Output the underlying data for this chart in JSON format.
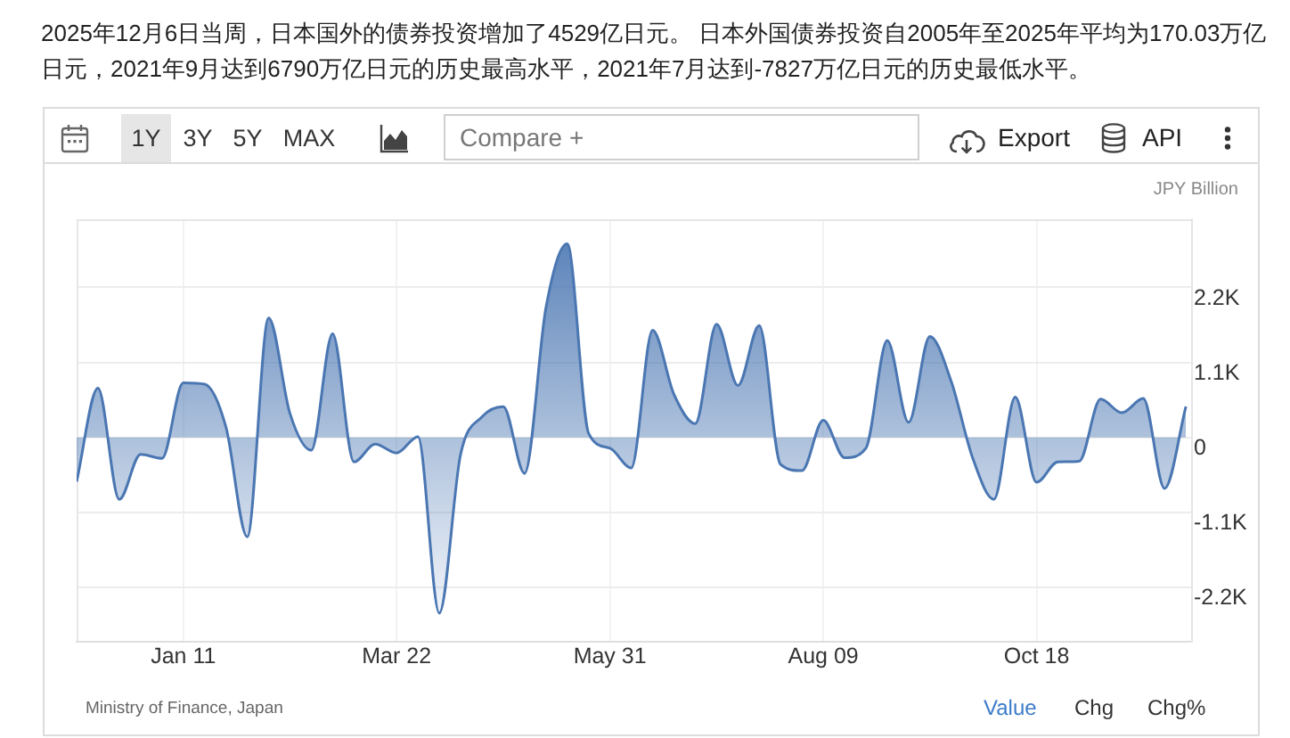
{
  "chart_data": {
    "type": "area",
    "title": "2025年12月6日当周，日本国外的债券投资增加了4529亿日元。 日本外国债券投资自2005年至2025年平均为170.03万亿日元，2021年9月达到6790万亿日元的历史最高水平，2021年7月达到-7827万亿日元的历史最低水平。",
    "ylabel": "JPY Billion",
    "x": [
      "2024-12-07",
      "2024-12-14",
      "2024-12-21",
      "2024-12-28",
      "2025-01-04",
      "2025-01-11",
      "2025-01-18",
      "2025-01-25",
      "2025-02-01",
      "2025-02-08",
      "2025-02-15",
      "2025-02-22",
      "2025-03-01",
      "2025-03-08",
      "2025-03-15",
      "2025-03-22",
      "2025-03-29",
      "2025-04-05",
      "2025-04-12",
      "2025-04-19",
      "2025-04-26",
      "2025-05-03",
      "2025-05-10",
      "2025-05-17",
      "2025-05-24",
      "2025-05-31",
      "2025-06-07",
      "2025-06-14",
      "2025-06-21",
      "2025-06-28",
      "2025-07-05",
      "2025-07-12",
      "2025-07-19",
      "2025-07-26",
      "2025-08-02",
      "2025-08-09",
      "2025-08-16",
      "2025-08-23",
      "2025-08-30",
      "2025-09-06",
      "2025-09-13",
      "2025-09-20",
      "2025-09-27",
      "2025-10-04",
      "2025-10-11",
      "2025-10-18",
      "2025-10-25",
      "2025-11-01",
      "2025-11-08",
      "2025-11-15",
      "2025-11-22",
      "2025-11-29",
      "2025-12-06"
    ],
    "series": [
      {
        "color": "#4a76b2",
        "values": [
          -650,
          720,
          -910,
          -250,
          -310,
          800,
          780,
          150,
          -1460,
          1750,
          350,
          -190,
          1520,
          -360,
          -100,
          -230,
          10,
          -2580,
          -250,
          300,
          450,
          -530,
          1900,
          2840,
          60,
          -160,
          -450,
          1570,
          630,
          200,
          1660,
          760,
          1640,
          -400,
          -490,
          250,
          -300,
          -160,
          1420,
          220,
          1480,
          820,
          -300,
          -910,
          590,
          -660,
          -360,
          -350,
          560,
          360,
          570,
          -750,
          450
        ]
      }
    ],
    "xlim": [
      "2024-12-07",
      "2025-12-08"
    ],
    "xticks": [
      {
        "value": "2025-01-11",
        "label": "Jan 11"
      },
      {
        "value": "2025-03-22",
        "label": "Mar 22"
      },
      {
        "value": "2025-05-31",
        "label": "May 31"
      },
      {
        "value": "2025-08-09",
        "label": "Aug 09"
      },
      {
        "value": "2025-10-18",
        "label": "Oct 18"
      }
    ],
    "ylim": [
      -3000,
      3200
    ],
    "yticks": [
      {
        "value": 2200,
        "label": "2.2K"
      },
      {
        "value": 1100,
        "label": "1.1K"
      },
      0,
      {
        "value": -1100,
        "label": "-1.1K"
      },
      {
        "value": -2200,
        "label": "-2.2K"
      }
    ],
    "grid": true,
    "legend": false,
    "marker": "none",
    "annotations": [
      "1Y",
      "3Y",
      "5Y",
      "MAX",
      "Compare +",
      "Export",
      "API",
      "Ministry of Finance, Japan",
      "Value",
      "Chg",
      "Chg%"
    ]
  }
}
